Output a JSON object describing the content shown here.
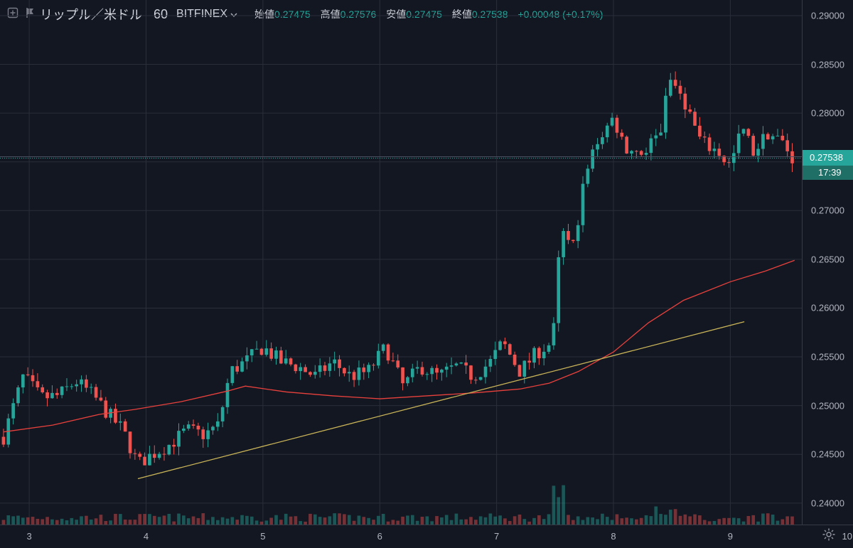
{
  "header": {
    "symbol": "リップル／米ドル",
    "interval": "60",
    "exchange": "BITFINEX",
    "open_label": "始値",
    "open": "0.27475",
    "high_label": "高値",
    "high": "0.27576",
    "low_label": "安値",
    "low": "0.27475",
    "close_label": "終値",
    "close": "0.27538",
    "change": "+0.00048 (+0.17%)"
  },
  "price_label": {
    "price": "0.27538",
    "countdown": "17:39"
  },
  "colors": {
    "background": "#131722",
    "up": "#26a69a",
    "down": "#ef5350",
    "ma": "#e8413c",
    "trendline": "#c9b458"
  },
  "icons": {
    "add": "plus-square-icon",
    "flag": "flag-icon",
    "chevron": "chevron-down-icon",
    "settings": "gear-icon"
  },
  "chart_data": {
    "type": "candlestick",
    "y_axis": {
      "ylim": [
        0.2378,
        0.2916
      ],
      "ticks": [
        "0.29000",
        "0.28500",
        "0.28000",
        "0.27500",
        "0.27000",
        "0.26500",
        "0.26000",
        "0.25500",
        "0.25000",
        "0.24500",
        "0.24000"
      ],
      "tick_values": [
        0.29,
        0.285,
        0.28,
        0.275,
        0.27,
        0.265,
        0.26,
        0.255,
        0.25,
        0.245,
        0.24
      ]
    },
    "x_axis": {
      "day_ticks": [
        "3",
        "4",
        "5",
        "6",
        "7",
        "8",
        "9",
        "10"
      ],
      "tick_days": [
        3,
        4,
        5,
        6,
        7,
        8,
        9,
        10
      ],
      "xlim": [
        2.75,
        10.05
      ]
    },
    "last_price": 0.27538,
    "trendline": [
      {
        "x": 3.93,
        "y": 0.2425
      },
      {
        "x": 9.12,
        "y": 0.2586
      }
    ],
    "moving_average": [
      [
        2.78,
        0.2473
      ],
      [
        3.2,
        0.248
      ],
      [
        3.6,
        0.2491
      ],
      [
        3.9,
        0.2496
      ],
      [
        4.3,
        0.2504
      ],
      [
        4.7,
        0.2515
      ],
      [
        4.85,
        0.252
      ],
      [
        5.2,
        0.2514
      ],
      [
        5.6,
        0.251
      ],
      [
        6.0,
        0.2507
      ],
      [
        6.4,
        0.251
      ],
      [
        6.8,
        0.2513
      ],
      [
        7.2,
        0.2517
      ],
      [
        7.45,
        0.2523
      ],
      [
        7.7,
        0.2535
      ],
      [
        8.0,
        0.2555
      ],
      [
        8.3,
        0.2585
      ],
      [
        8.6,
        0.2608
      ],
      [
        9.0,
        0.2627
      ],
      [
        9.3,
        0.2638
      ],
      [
        9.55,
        0.2649
      ]
    ],
    "candles_anchor": [
      [
        2.78,
        0.2468
      ],
      [
        2.95,
        0.253
      ],
      [
        3.1,
        0.2508
      ],
      [
        3.25,
        0.251
      ],
      [
        3.4,
        0.2525
      ],
      [
        3.55,
        0.251
      ],
      [
        3.65,
        0.2495
      ],
      [
        3.8,
        0.2475
      ],
      [
        3.93,
        0.244
      ],
      [
        4.05,
        0.245
      ],
      [
        4.2,
        0.246
      ],
      [
        4.35,
        0.2475
      ],
      [
        4.5,
        0.247
      ],
      [
        4.62,
        0.248
      ],
      [
        4.72,
        0.2535
      ],
      [
        4.85,
        0.2545
      ],
      [
        5.0,
        0.256
      ],
      [
        5.15,
        0.2545
      ],
      [
        5.3,
        0.254
      ],
      [
        5.45,
        0.253
      ],
      [
        5.6,
        0.2545
      ],
      [
        5.75,
        0.253
      ],
      [
        5.9,
        0.2535
      ],
      [
        6.05,
        0.256
      ],
      [
        6.2,
        0.252
      ],
      [
        6.35,
        0.254
      ],
      [
        6.5,
        0.253
      ],
      [
        6.65,
        0.254
      ],
      [
        6.8,
        0.253
      ],
      [
        6.95,
        0.2545
      ],
      [
        7.05,
        0.2565
      ],
      [
        7.2,
        0.2535
      ],
      [
        7.35,
        0.2555
      ],
      [
        7.48,
        0.2565
      ],
      [
        7.55,
        0.268
      ],
      [
        7.65,
        0.266
      ],
      [
        7.75,
        0.273
      ],
      [
        7.85,
        0.277
      ],
      [
        8.0,
        0.2795
      ],
      [
        8.1,
        0.2765
      ],
      [
        8.25,
        0.276
      ],
      [
        8.4,
        0.278
      ],
      [
        8.48,
        0.2835
      ],
      [
        8.6,
        0.2815
      ],
      [
        8.75,
        0.277
      ],
      [
        8.9,
        0.276
      ],
      [
        9.0,
        0.2745
      ],
      [
        9.1,
        0.2785
      ],
      [
        9.2,
        0.276
      ],
      [
        9.32,
        0.278
      ],
      [
        9.45,
        0.277
      ],
      [
        9.53,
        0.2754
      ]
    ]
  }
}
